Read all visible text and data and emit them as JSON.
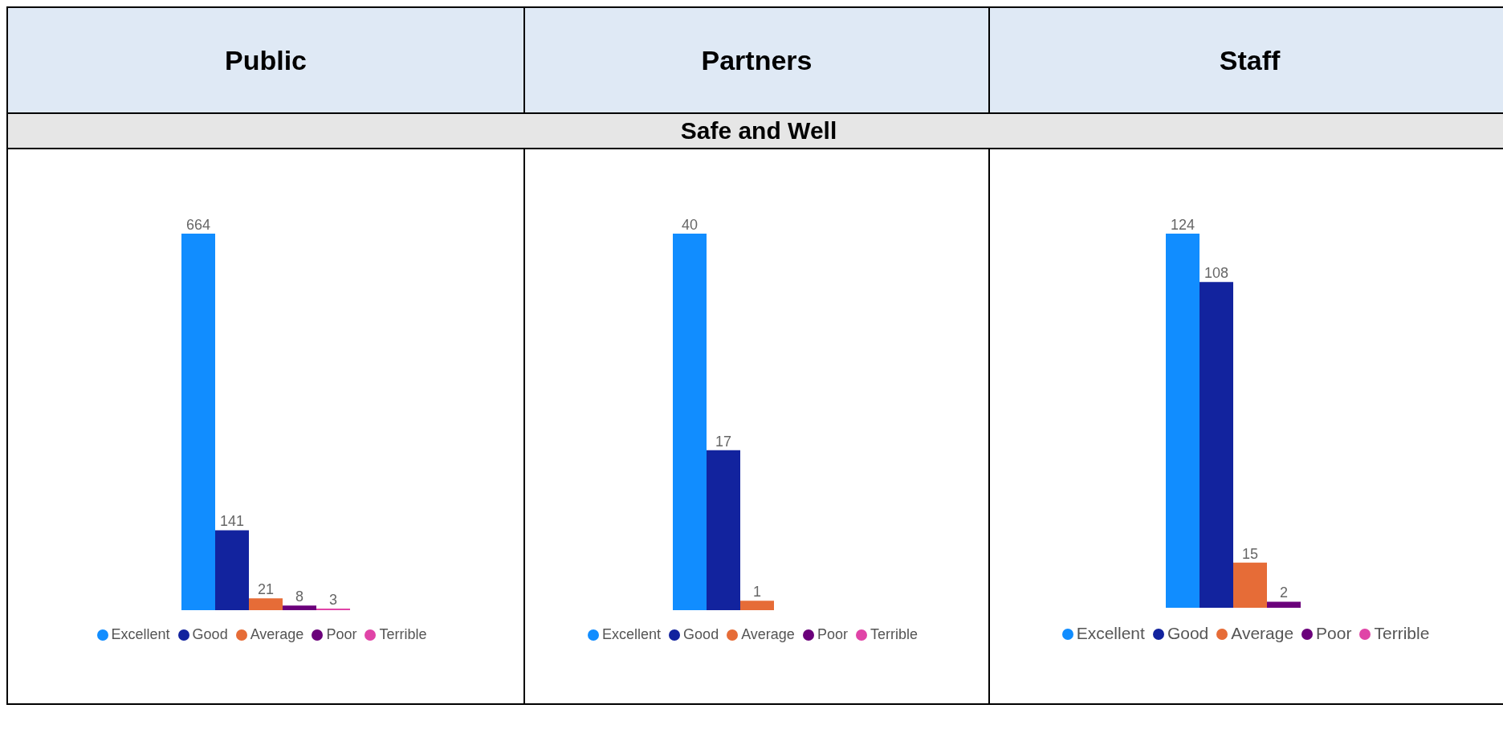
{
  "chart_data": [
    {
      "type": "bar",
      "title": "Public",
      "categories": [
        null
      ],
      "data_labels": true,
      "legend": "bottom",
      "series": [
        {
          "name": "Excellent",
          "color": "#118dff",
          "values": [
            664
          ]
        },
        {
          "name": "Good",
          "color": "#12239e",
          "values": [
            141
          ]
        },
        {
          "name": "Average",
          "color": "#e66c37",
          "values": [
            21
          ]
        },
        {
          "name": "Poor",
          "color": "#6b007b",
          "values": [
            8
          ]
        },
        {
          "name": "Terrible",
          "color": "#e044a7",
          "values": [
            3
          ]
        }
      ]
    },
    {
      "type": "bar",
      "title": "Partners",
      "subtitle": "Safe and Well",
      "categories": [
        null
      ],
      "data_labels": true,
      "legend": "bottom",
      "series": [
        {
          "name": "Excellent",
          "color": "#118dff",
          "values": [
            40
          ]
        },
        {
          "name": "Good",
          "color": "#12239e",
          "values": [
            17
          ]
        },
        {
          "name": "Average",
          "color": "#e66c37",
          "values": [
            1
          ]
        },
        {
          "name": "Poor",
          "color": "#6b007b",
          "values": [
            null
          ]
        },
        {
          "name": "Terrible",
          "color": "#e044a7",
          "values": [
            null
          ]
        }
      ]
    },
    {
      "type": "bar",
      "title": "Staff",
      "categories": [
        null
      ],
      "data_labels": true,
      "legend": "bottom",
      "series": [
        {
          "name": "Excellent",
          "color": "#118dff",
          "values": [
            124
          ]
        },
        {
          "name": "Good",
          "color": "#12239e",
          "values": [
            108
          ]
        },
        {
          "name": "Average",
          "color": "#e66c37",
          "values": [
            15
          ]
        },
        {
          "name": "Poor",
          "color": "#6b007b",
          "values": [
            2
          ]
        },
        {
          "name": "Terrible",
          "color": "#e044a7",
          "values": [
            null
          ]
        }
      ]
    }
  ]
}
